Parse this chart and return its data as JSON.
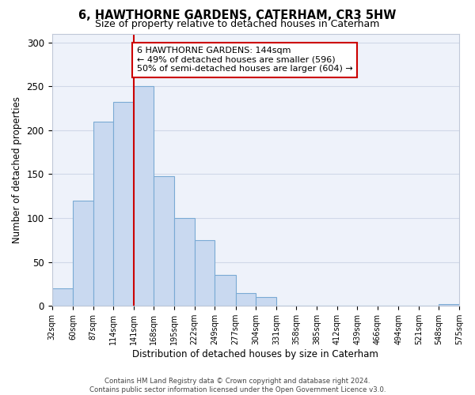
{
  "title": "6, HAWTHORNE GARDENS, CATERHAM, CR3 5HW",
  "subtitle": "Size of property relative to detached houses in Caterham",
  "xlabel": "Distribution of detached houses by size in Caterham",
  "ylabel": "Number of detached properties",
  "bin_edges": [
    32,
    60,
    87,
    114,
    141,
    168,
    195,
    222,
    249,
    277,
    304,
    331,
    358,
    385,
    412,
    439,
    466,
    494,
    521,
    548,
    575
  ],
  "bin_heights": [
    20,
    120,
    210,
    232,
    250,
    148,
    100,
    75,
    35,
    15,
    10,
    0,
    0,
    0,
    0,
    0,
    0,
    0,
    0,
    2
  ],
  "bar_color": "#c9d9f0",
  "bar_edge_color": "#7aaad4",
  "grid_color": "#d0d8e8",
  "background_color": "#eef2fa",
  "vline_x": 141,
  "vline_color": "#cc0000",
  "annotation_text": "6 HAWTHORNE GARDENS: 144sqm\n← 49% of detached houses are smaller (596)\n50% of semi-detached houses are larger (604) →",
  "annotation_box_color": "#ffffff",
  "annotation_box_edge": "#cc0000",
  "ylim": [
    0,
    310
  ],
  "tick_labels": [
    "32sqm",
    "60sqm",
    "87sqm",
    "114sqm",
    "141sqm",
    "168sqm",
    "195sqm",
    "222sqm",
    "249sqm",
    "277sqm",
    "304sqm",
    "331sqm",
    "358sqm",
    "385sqm",
    "412sqm",
    "439sqm",
    "466sqm",
    "494sqm",
    "521sqm",
    "548sqm",
    "575sqm"
  ],
  "footer_text": "Contains HM Land Registry data © Crown copyright and database right 2024.\nContains public sector information licensed under the Open Government Licence v3.0."
}
